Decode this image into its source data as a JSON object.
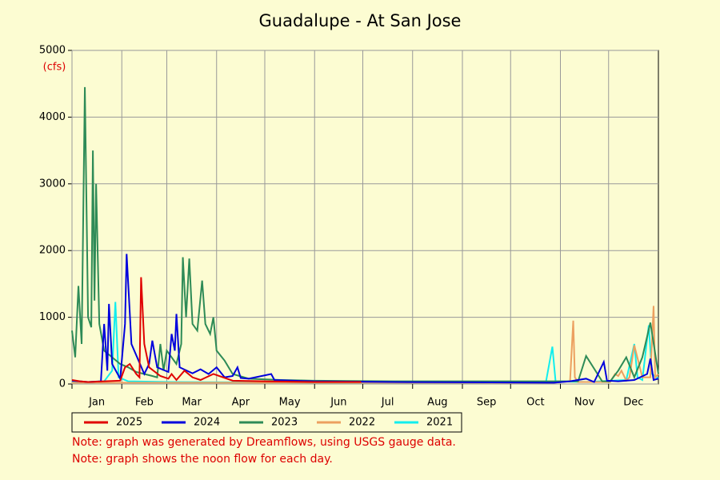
{
  "chart_data": {
    "type": "line",
    "title": "Guadalupe - At San Jose",
    "ylabel": "(cfs)",
    "xlim": [
      0,
      365
    ],
    "ylim": [
      0,
      5000
    ],
    "yticks": [
      0,
      1000,
      2000,
      3000,
      4000,
      5000
    ],
    "grid": true,
    "xticks": [
      {
        "value": 0,
        "label": "Jan"
      },
      {
        "value": 31,
        "label": "Feb"
      },
      {
        "value": 59,
        "label": "Mar"
      },
      {
        "value": 90,
        "label": "Apr"
      },
      {
        "value": 120,
        "label": "May"
      },
      {
        "value": 151,
        "label": "Jun"
      },
      {
        "value": 181,
        "label": "Jul"
      },
      {
        "value": 212,
        "label": "Aug"
      },
      {
        "value": 243,
        "label": "Sep"
      },
      {
        "value": 273,
        "label": "Oct"
      },
      {
        "value": 304,
        "label": "Nov"
      },
      {
        "value": 334,
        "label": "Dec"
      }
    ],
    "legend": "bottom",
    "series": [
      {
        "name": "2025",
        "color": "#e00000",
        "x": [
          0,
          5,
          10,
          20,
          30,
          33,
          36,
          40,
          42,
          43,
          45,
          48,
          55,
          60,
          62,
          65,
          70,
          75,
          80,
          88,
          100,
          120,
          150,
          180
        ],
        "values": [
          60,
          40,
          30,
          40,
          50,
          250,
          300,
          150,
          100,
          1600,
          600,
          250,
          120,
          80,
          150,
          60,
          200,
          100,
          60,
          150,
          50,
          40,
          30,
          30
        ]
      },
      {
        "name": "2024",
        "color": "#0000dd",
        "x": [
          0,
          10,
          18,
          20,
          22,
          23,
          25,
          30,
          33,
          34,
          37,
          45,
          48,
          50,
          53,
          60,
          62,
          64,
          65,
          67,
          75,
          80,
          85,
          90,
          95,
          100,
          103,
          105,
          110,
          124,
          126,
          150,
          200,
          250,
          300,
          310,
          320,
          325,
          331,
          333,
          340,
          350,
          358,
          360,
          362,
          365
        ],
        "values": [
          50,
          30,
          40,
          900,
          200,
          1200,
          300,
          80,
          900,
          1950,
          600,
          150,
          300,
          650,
          250,
          180,
          750,
          500,
          1050,
          250,
          160,
          220,
          150,
          250,
          100,
          120,
          250,
          90,
          80,
          150,
          60,
          40,
          30,
          25,
          20,
          40,
          80,
          30,
          330,
          50,
          40,
          60,
          150,
          380,
          60,
          80
        ]
      },
      {
        "name": "2023",
        "color": "#2e8b57",
        "x": [
          0,
          2,
          4,
          6,
          8,
          10,
          12,
          13,
          14,
          15,
          17,
          20,
          25,
          30,
          35,
          40,
          45,
          50,
          53,
          55,
          57,
          59,
          62,
          65,
          68,
          69,
          71,
          73,
          75,
          78,
          81,
          83,
          86,
          88,
          90,
          95,
          100,
          110,
          130,
          150,
          200,
          250,
          300,
          315,
          320,
          330,
          335,
          340,
          345,
          350,
          355,
          360,
          365
        ],
        "values": [
          800,
          400,
          1470,
          600,
          4450,
          1000,
          850,
          3500,
          1250,
          3000,
          900,
          500,
          400,
          300,
          250,
          180,
          150,
          120,
          100,
          600,
          200,
          500,
          400,
          300,
          600,
          1900,
          1000,
          1880,
          900,
          800,
          1550,
          900,
          750,
          1000,
          500,
          350,
          150,
          80,
          60,
          50,
          40,
          40,
          40,
          40,
          420,
          40,
          40,
          200,
          400,
          100,
          400,
          920,
          150
        ]
      },
      {
        "name": "2022",
        "color": "#eca060",
        "x": [
          0,
          30,
          60,
          120,
          180,
          240,
          300,
          310,
          312,
          313,
          315,
          320,
          330,
          335,
          338,
          340,
          342,
          345,
          347,
          350,
          355,
          360,
          362,
          363,
          365
        ],
        "values": [
          20,
          20,
          20,
          20,
          20,
          20,
          20,
          40,
          950,
          100,
          30,
          30,
          30,
          30,
          150,
          120,
          200,
          50,
          100,
          580,
          100,
          100,
          1170,
          100,
          150
        ]
      },
      {
        "name": "2021",
        "color": "#11eeee",
        "x": [
          0,
          10,
          20,
          25,
          27,
          29,
          35,
          60,
          100,
          150,
          200,
          250,
          295,
          299,
          301,
          320,
          345,
          350,
          352,
          355,
          359,
          361,
          365
        ],
        "values": [
          30,
          30,
          40,
          200,
          1230,
          100,
          40,
          30,
          25,
          20,
          20,
          20,
          30,
          560,
          40,
          30,
          60,
          600,
          100,
          60,
          880,
          150,
          80
        ]
      }
    ],
    "notes": [
      "Note: graph was generated by Dreamflows, using USGS gauge data.",
      "Note: graph shows the noon flow for each day."
    ]
  }
}
